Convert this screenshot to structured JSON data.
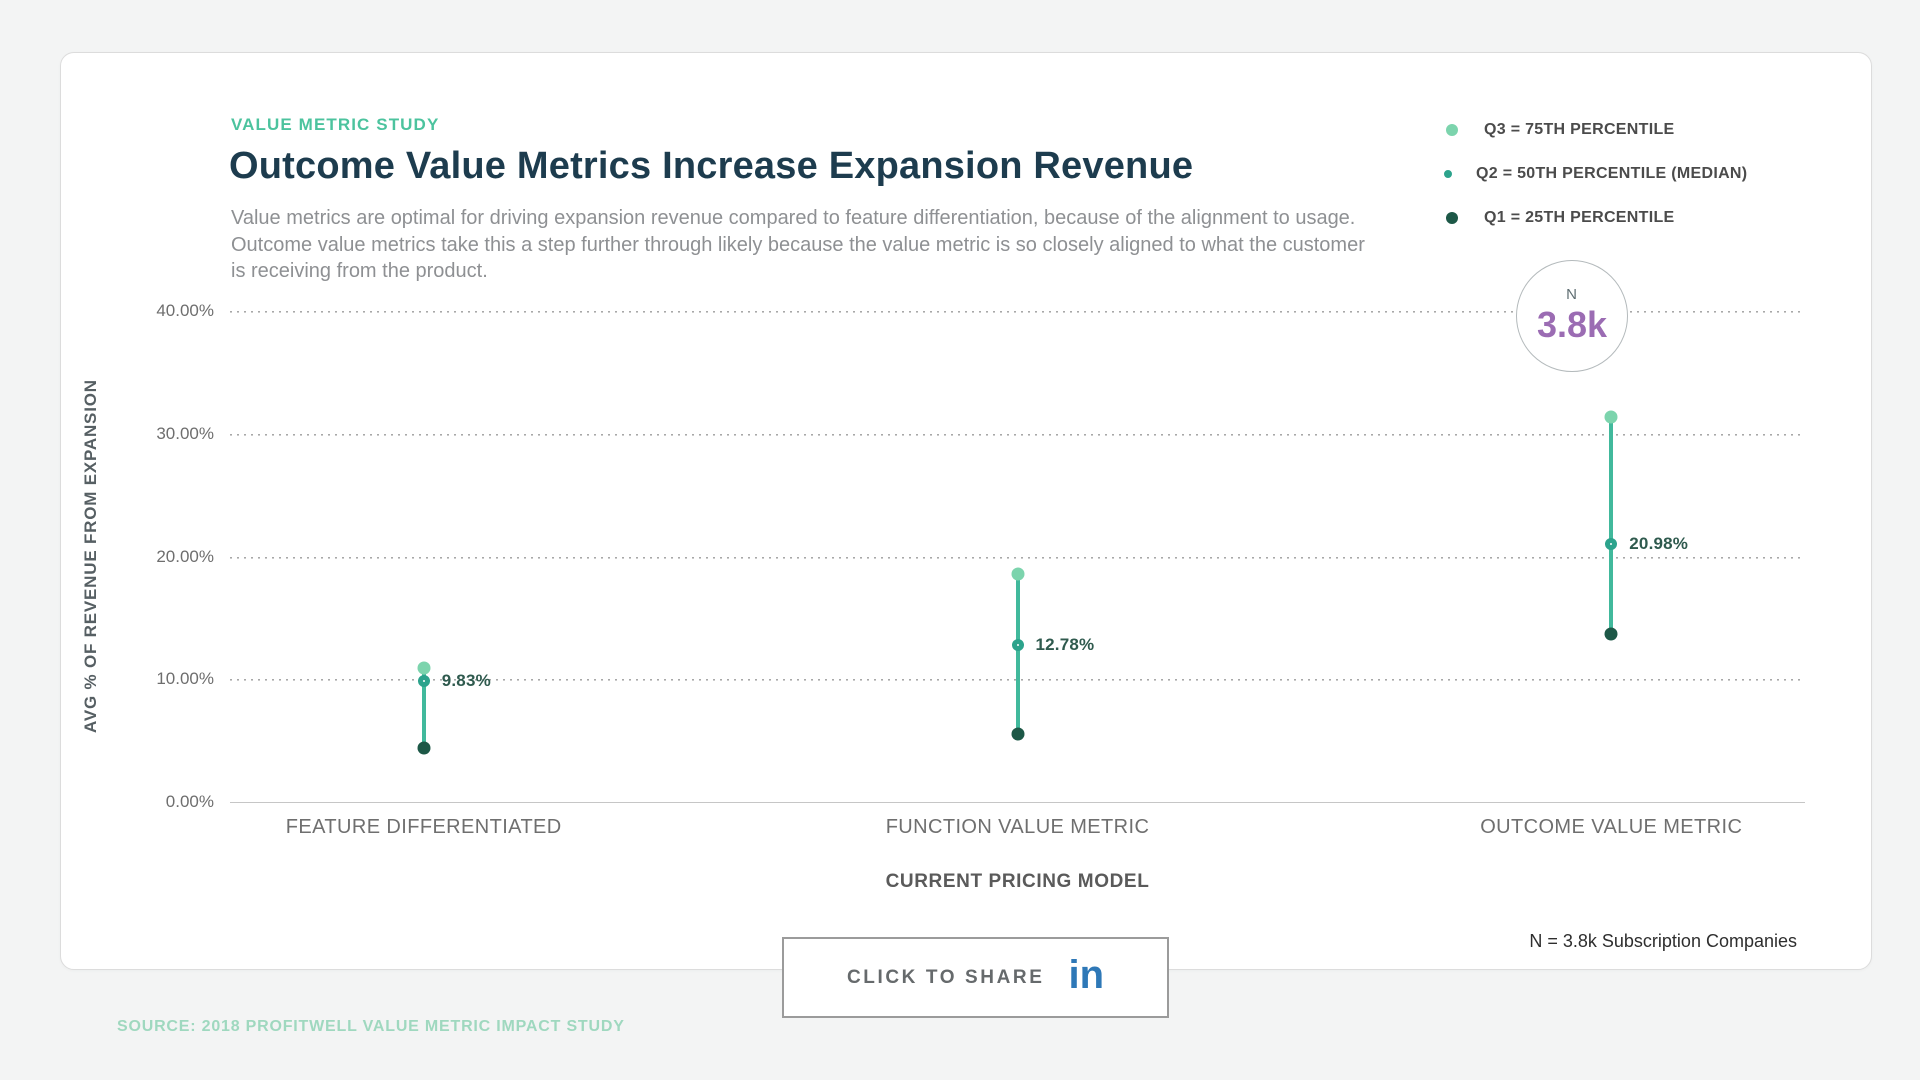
{
  "colors": {
    "accent_green": "#4cc39e",
    "title_navy": "#1d3c4e",
    "q3": "#7cd4ad",
    "q2": "#2ca38c",
    "q1": "#1d5847",
    "range_line": "#41b99c",
    "badge_purple": "#9b6cb3",
    "linkedin_blue": "#2e78b7"
  },
  "header": {
    "eyebrow": "VALUE METRIC STUDY",
    "title": "Outcome Value Metrics Increase Expansion Revenue",
    "description": "Value metrics are optimal for driving expansion revenue compared to feature differentiation, because of the alignment to usage. Outcome value metrics take this a step further through likely because the value metric is so closely aligned to what the customer is receiving from the product."
  },
  "legend": {
    "items": [
      {
        "label": "Q3 = 75TH PERCENTILE",
        "marker": "light-green-dot"
      },
      {
        "label": "Q2 = 50TH PERCENTILE (MEDIAN)",
        "marker": "teal-ring"
      },
      {
        "label": "Q1 = 25TH PERCENTILE",
        "marker": "dark-green-dot"
      }
    ]
  },
  "badge": {
    "label": "N",
    "value": "3.8k"
  },
  "chart_data": {
    "type": "quartile-range-dot",
    "title": "Outcome Value Metrics Increase Expansion Revenue",
    "categories": [
      "FEATURE DIFFERENTIATED",
      "FUNCTION VALUE METRIC",
      "OUTCOME VALUE METRIC"
    ],
    "series": [
      {
        "name": "Q3 = 75TH PERCENTILE",
        "values": [
          10.9,
          18.6,
          31.4
        ]
      },
      {
        "name": "Q2 = 50TH PERCENTILE (MEDIAN)",
        "values": [
          9.83,
          12.78,
          20.98
        ],
        "value_labels": [
          "9.83%",
          "12.78%",
          "20.98%"
        ]
      },
      {
        "name": "Q1 = 25TH PERCENTILE",
        "values": [
          4.4,
          5.5,
          13.7
        ]
      }
    ],
    "xlabel": "CURRENT PRICING MODEL",
    "ylabel": "AVG % OF REVENUE FROM EXPANSION",
    "ylim": [
      0,
      40
    ],
    "yticks": [
      {
        "value": 0,
        "label": "0.00%"
      },
      {
        "value": 10,
        "label": "10.00%"
      },
      {
        "value": 20,
        "label": "20.00%"
      },
      {
        "value": 30,
        "label": "30.00%"
      },
      {
        "value": 40,
        "label": "40.00%"
      }
    ],
    "grid": "horizontal-dotted",
    "legend_position": "top-right"
  },
  "footer": {
    "share_label": "CLICK TO SHARE",
    "linkedin_icon": "in",
    "note": "N = 3.8k Subscription Companies",
    "source": "SOURCE: 2018 PROFITWELL VALUE METRIC IMPACT STUDY"
  }
}
